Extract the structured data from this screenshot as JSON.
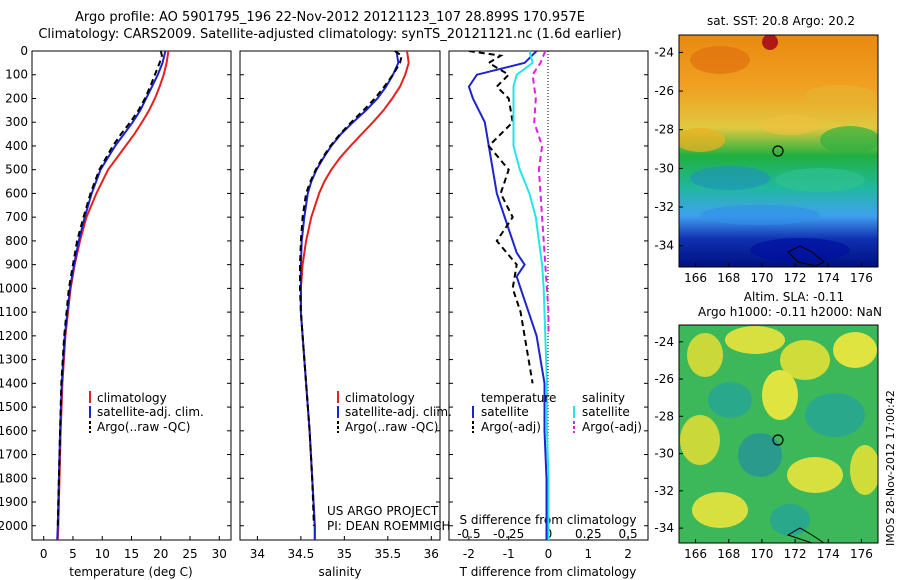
{
  "header": {
    "line1": "Argo profile: AO 5901795_196 22-Nov-2012 20121123_107 28.899S 170.957E",
    "line2": "Climatology: CARS2009. Satellite-adjusted climatology: synTS_20121121.nc (1.6d earlier)"
  },
  "depth_ticks": [
    "0",
    "100",
    "200",
    "300",
    "400",
    "500",
    "600",
    "700",
    "800",
    "900",
    "1000",
    "1100",
    "1200",
    "1300",
    "1400",
    "1500",
    "1600",
    "1700",
    "1800",
    "1900",
    "2000"
  ],
  "colors": {
    "climatology": "#e8201c",
    "satellite": "#1c24d0",
    "argo": "#000000",
    "sal_sat": "#22e6e6",
    "sal_argo": "#e020e0"
  },
  "panels": {
    "temperature": {
      "xticks": [
        "0",
        "5",
        "10",
        "15",
        "20",
        "25",
        "30"
      ],
      "xlabel": "temperature (deg C)",
      "legend": [
        "climatology",
        "satellite-adj. clim.",
        "Argo(..raw -QC)"
      ]
    },
    "salinity": {
      "xticks": [
        "34",
        "34.5",
        "35",
        "35.5",
        "36"
      ],
      "xlabel": "salinity",
      "legend": [
        "climatology",
        "satellite-adj. clim.",
        "Argo(..raw -QC)"
      ],
      "credit1": "US ARGO PROJECT",
      "credit2": "PI: DEAN ROEMMICH"
    },
    "difference": {
      "xticks_bottom": [
        "-2",
        "-1",
        "0",
        "1",
        "2"
      ],
      "xticks_top": [
        "-0.5",
        "-0.25",
        "0",
        "0.25",
        "0.5"
      ],
      "xlabel": "T difference from climatology",
      "toplabel": "S difference from climatology",
      "legend_t_title": "temperature",
      "legend_s_title": "salinity",
      "legend_t": [
        "satellite",
        "Argo(-adj)"
      ],
      "legend_s": [
        "satellite",
        "Argo(-adj)"
      ]
    }
  },
  "maps": {
    "sst_title": "sat. SST: 20.8 Argo: 20.2",
    "sla_title1": "Altim. SLA: -0.11",
    "sla_title2": "Argo h1000: -0.11 h2000: NaN",
    "yticks": [
      "-24",
      "-26",
      "-28",
      "-30",
      "-32",
      "-34"
    ],
    "xticks": [
      "166",
      "168",
      "170",
      "172",
      "174",
      "176"
    ],
    "stamp": "IMOS 28-Nov-2012 17:00:42"
  },
  "chart_data": [
    {
      "type": "line",
      "title": "",
      "xlabel": "temperature (deg C)",
      "ylabel": "",
      "xlim": [
        -2,
        32
      ],
      "ylim": [
        2060,
        0
      ],
      "series": [
        {
          "name": "climatology",
          "depth": [
            0,
            50,
            100,
            150,
            200,
            250,
            300,
            350,
            400,
            500,
            600,
            700,
            800,
            900,
            1000,
            1200,
            1400,
            1600,
            1800,
            2000,
            2060
          ],
          "values": [
            21.3,
            21.0,
            20.5,
            19.8,
            19.0,
            18.0,
            16.8,
            15.5,
            14.0,
            11.0,
            9.0,
            7.3,
            6.2,
            5.3,
            4.6,
            3.7,
            3.2,
            2.9,
            2.7,
            2.5,
            2.4
          ]
        },
        {
          "name": "satellite-adj. clim.",
          "depth": [
            0,
            50,
            100,
            150,
            200,
            250,
            300,
            350,
            400,
            500,
            600,
            700,
            800,
            900,
            1000,
            1200,
            1400,
            1600,
            1800,
            2000,
            2060
          ],
          "values": [
            20.8,
            20.3,
            19.5,
            18.5,
            17.5,
            16.5,
            15.2,
            13.7,
            12.2,
            9.7,
            8.2,
            7.0,
            6.0,
            5.2,
            4.5,
            3.6,
            3.1,
            2.8,
            2.6,
            2.4,
            2.3
          ]
        },
        {
          "name": "Argo(..raw -QC)",
          "depth": [
            0,
            20,
            50,
            100,
            150,
            200,
            250,
            300,
            350,
            400,
            500,
            600,
            700,
            800,
            900,
            1000,
            1200,
            1400,
            1600,
            1800,
            2000
          ],
          "values": [
            20.0,
            20.2,
            19.8,
            19.0,
            18.2,
            17.3,
            16.2,
            14.8,
            13.2,
            11.8,
            9.5,
            8.0,
            6.8,
            5.7,
            5.0,
            4.3,
            3.5,
            3.0,
            2.8,
            2.6,
            2.4
          ]
        }
      ]
    },
    {
      "type": "line",
      "title": "",
      "xlabel": "salinity",
      "ylabel": "",
      "xlim": [
        33.8,
        36.1
      ],
      "ylim": [
        2060,
        0
      ],
      "series": [
        {
          "name": "climatology",
          "depth": [
            0,
            50,
            100,
            150,
            200,
            250,
            300,
            350,
            400,
            450,
            500,
            550,
            600,
            700,
            800,
            900,
            1000,
            1100,
            1200,
            1400,
            1600,
            1800,
            2000,
            2060
          ],
          "values": [
            35.72,
            35.74,
            35.7,
            35.64,
            35.55,
            35.45,
            35.33,
            35.2,
            35.07,
            34.95,
            34.85,
            34.77,
            34.71,
            34.62,
            34.56,
            34.52,
            34.5,
            34.5,
            34.52,
            34.56,
            34.6,
            34.63,
            34.66,
            34.66
          ]
        },
        {
          "name": "satellite-adj. clim.",
          "depth": [
            0,
            50,
            100,
            150,
            200,
            250,
            300,
            350,
            400,
            450,
            500,
            550,
            600,
            700,
            800,
            900,
            1000,
            1100,
            1200,
            1400,
            1600,
            1800,
            2000,
            2060
          ],
          "values": [
            35.6,
            35.62,
            35.56,
            35.48,
            35.38,
            35.25,
            35.1,
            34.96,
            34.85,
            34.76,
            34.68,
            34.62,
            34.58,
            34.54,
            34.51,
            34.5,
            34.5,
            34.5,
            34.52,
            34.56,
            34.6,
            34.63,
            34.66,
            34.66
          ]
        },
        {
          "name": "Argo(..raw -QC)",
          "depth": [
            0,
            20,
            50,
            100,
            150,
            200,
            250,
            300,
            350,
            400,
            450,
            500,
            550,
            600,
            700,
            800,
            900,
            1000,
            1100,
            1200,
            1400,
            1600,
            1800,
            2000
          ],
          "values": [
            35.58,
            35.66,
            35.64,
            35.56,
            35.46,
            35.35,
            35.22,
            35.08,
            34.95,
            34.84,
            34.75,
            34.67,
            34.61,
            34.56,
            34.52,
            34.5,
            34.49,
            34.49,
            34.5,
            34.52,
            34.56,
            34.6,
            34.63,
            34.65
          ]
        }
      ]
    },
    {
      "type": "line",
      "title": "",
      "xlabel": "T difference from climatology",
      "x2label": "S difference from climatology",
      "xlim": [
        -2.5,
        2.5
      ],
      "ylim": [
        2060,
        0
      ],
      "series": [
        {
          "name": "temperature satellite",
          "depth": [
            0,
            50,
            100,
            150,
            200,
            300,
            400,
            500,
            600,
            700,
            800,
            850,
            900,
            950,
            1000,
            1100,
            1200,
            1300,
            1400,
            1600,
            1800,
            2000,
            2060
          ],
          "values": [
            -0.3,
            -0.6,
            -1.8,
            -2.0,
            -1.9,
            -1.6,
            -1.5,
            -1.4,
            -1.3,
            -1.1,
            -0.9,
            -0.8,
            -0.6,
            -0.8,
            -0.7,
            -0.5,
            -0.3,
            -0.2,
            -0.1,
            -0.1,
            -0.05,
            -0.05,
            -0.05
          ]
        },
        {
          "name": "temperature Argo(-adj)",
          "depth": [
            0,
            20,
            50,
            100,
            150,
            200,
            300,
            400,
            500,
            600,
            700,
            800,
            900,
            1000,
            1100,
            1200,
            1300,
            1400
          ],
          "values": [
            -2.0,
            -1.2,
            -1.5,
            -1.0,
            -1.3,
            -1.0,
            -0.9,
            -1.5,
            -1.0,
            -1.2,
            -0.9,
            -1.3,
            -0.8,
            -0.9,
            -0.7,
            -0.6,
            -0.5,
            -0.4
          ]
        },
        {
          "name": "salinity satellite",
          "depth": [
            0,
            50,
            100,
            150,
            200,
            300,
            400,
            500,
            600,
            700,
            800,
            900,
            1000,
            1200,
            1400,
            1600,
            1800,
            2000,
            2060
          ],
          "values": [
            -0.12,
            -0.1,
            -0.2,
            -0.22,
            -0.22,
            -0.22,
            -0.22,
            -0.18,
            -0.12,
            -0.08,
            -0.06,
            -0.04,
            -0.03,
            -0.02,
            -0.01,
            -0.01,
            0,
            0,
            0
          ]
        },
        {
          "name": "salinity Argo(-adj)",
          "depth": [
            0,
            50,
            100,
            200,
            300,
            400,
            500,
            600,
            700,
            800,
            900,
            1000,
            1100,
            1200
          ],
          "values": [
            -0.02,
            -0.05,
            -0.1,
            -0.08,
            -0.09,
            -0.04,
            -0.06,
            -0.05,
            -0.04,
            -0.03,
            -0.02,
            -0.01,
            0.0,
            0.0
          ]
        }
      ]
    }
  ]
}
